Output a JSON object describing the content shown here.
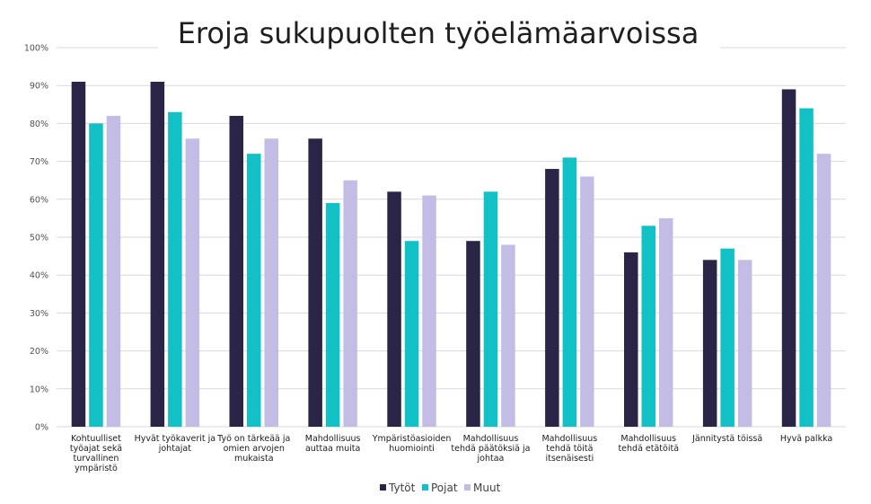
{
  "chart_data": {
    "type": "bar",
    "title": "Eroja sukupuolten työelämäarvoissa",
    "xlabel": "",
    "ylabel": "",
    "ylim": [
      0,
      100
    ],
    "y_ticks": [
      "0%",
      "10%",
      "20%",
      "30%",
      "40%",
      "50%",
      "60%",
      "70%",
      "80%",
      "90%",
      "100%"
    ],
    "grid": true,
    "legend_position": "bottom",
    "categories": [
      "Kohtuulliset työajat sekä turvallinen ympäristö",
      "Hyvät työkaverit ja johtajat",
      "Työ on tärkeää ja omien arvojen mukaista",
      "Mahdollisuus auttaa muita",
      "Ympäristöasioiden huomiointi",
      "Mahdollisuus tehdä päätöksiä ja johtaa",
      "Mahdollisuus tehdä töitä itsenäisesti",
      "Mahdollisuus tehdä etätöitä",
      "Jännitystä töissä",
      "Hyvä palkka"
    ],
    "category_lines": [
      [
        "Kohtuulliset",
        "työajat sekä",
        "turvallinen",
        "ympäristö"
      ],
      [
        "Hyvät työkaverit ja",
        "johtajat"
      ],
      [
        "Työ on tärkeää ja",
        "omien arvojen",
        "mukaista"
      ],
      [
        "Mahdollisuus",
        "auttaa muita"
      ],
      [
        "Ympäristöasioiden",
        "huomiointi"
      ],
      [
        "Mahdollisuus",
        "tehdä päätöksiä ja",
        "johtaa"
      ],
      [
        "Mahdollisuus",
        "tehdä töitä",
        "itsenäisesti"
      ],
      [
        "Mahdollisuus",
        "tehdä etätöitä"
      ],
      [
        "Jännitystä töissä"
      ],
      [
        "Hyvä palkka"
      ]
    ],
    "series": [
      {
        "name": "Tytöt",
        "color": "#2a2546",
        "values": [
          91,
          91,
          82,
          76,
          62,
          49,
          68,
          46,
          44,
          89
        ]
      },
      {
        "name": "Pojat",
        "color": "#12c1c6",
        "values": [
          80,
          83,
          72,
          59,
          49,
          62,
          71,
          53,
          47,
          84
        ]
      },
      {
        "name": "Muut",
        "color": "#c3bde5",
        "values": [
          82,
          76,
          76,
          65,
          61,
          48,
          66,
          55,
          44,
          72
        ]
      }
    ]
  }
}
